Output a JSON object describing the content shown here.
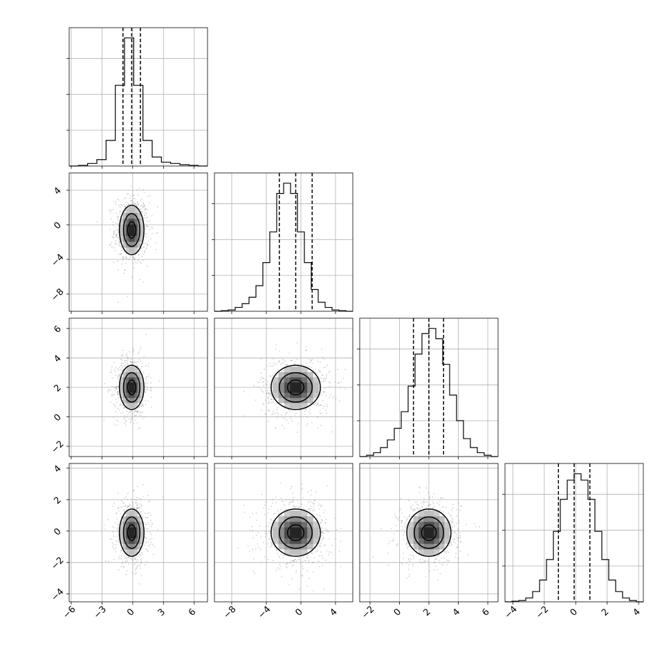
{
  "chart_data": {
    "type": "corner",
    "n_params": 4,
    "grid": true,
    "params": [
      {
        "axis_ticks": [
          -6,
          -3,
          0,
          3,
          6
        ],
        "range": [
          -6.2,
          7.3
        ],
        "mean": -0.1,
        "sd": 0.8,
        "quantiles": [
          -0.95,
          -0.1,
          0.75
        ],
        "hist": [
          0,
          0.005,
          0.02,
          0.05,
          0.2,
          0.63,
          1.0,
          0.63,
          0.2,
          0.07,
          0.03,
          0.02,
          0.01,
          0.005,
          0
        ]
      },
      {
        "axis_ticks": [
          -8,
          -4,
          0,
          4
        ],
        "range": [
          -10,
          6
        ],
        "mean": -0.6,
        "sd": 1.9,
        "quantiles": [
          -2.5,
          -0.6,
          1.3
        ],
        "hist": [
          0,
          0.005,
          0.01,
          0.03,
          0.06,
          0.11,
          0.2,
          0.38,
          0.62,
          0.92,
          1.0,
          0.92,
          0.62,
          0.38,
          0.17,
          0.07,
          0.03,
          0.01,
          0.005,
          0
        ]
      },
      {
        "axis_ticks": [
          -2,
          0,
          2,
          4,
          6
        ],
        "range": [
          -2.7,
          6.7
        ],
        "mean": 2.0,
        "sd": 1.0,
        "quantiles": [
          0.95,
          2.0,
          3.0
        ],
        "hist": [
          0,
          0.01,
          0.03,
          0.07,
          0.13,
          0.22,
          0.35,
          0.55,
          0.8,
          0.96,
          1.0,
          0.92,
          0.72,
          0.48,
          0.28,
          0.14,
          0.07,
          0.03,
          0.01,
          0
        ]
      },
      {
        "axis_ticks": [
          -4,
          -2,
          0,
          2,
          4
        ],
        "range": [
          -4.5,
          4.3
        ],
        "mean": -0.1,
        "sd": 1.0,
        "quantiles": [
          -1.1,
          -0.1,
          0.9
        ],
        "hist": [
          0,
          0.005,
          0.01,
          0.03,
          0.08,
          0.17,
          0.33,
          0.55,
          0.8,
          0.95,
          1.0,
          0.95,
          0.8,
          0.55,
          0.33,
          0.17,
          0.08,
          0.03,
          0.01,
          0
        ]
      }
    ],
    "contour_sigma_levels": [
      0.5,
      1.0,
      1.5
    ]
  }
}
